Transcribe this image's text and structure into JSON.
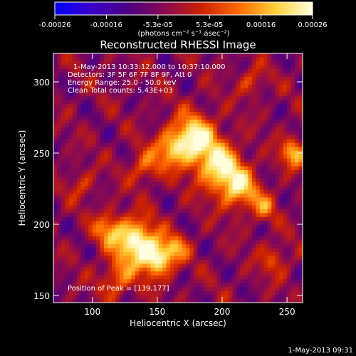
{
  "colorbar": {
    "tick_labels": [
      "-0.00026",
      "-0.00016",
      "-5.3e-05",
      "5.3e-05",
      "0.00016",
      "0.00026"
    ],
    "units_label": "(photons cm⁻² s⁻¹ asec⁻²)",
    "range": [
      -0.00026,
      0.00026
    ],
    "stops": [
      "#0000ff",
      "#3a00c8",
      "#4b0082",
      "#8b0a50",
      "#cc2200",
      "#ff6a00",
      "#ffd23a",
      "#ffffe0"
    ]
  },
  "chart_data": {
    "type": "heatmap",
    "title": "Reconstructed RHESSI Image",
    "xlabel": "Heliocentric X (arcsec)",
    "ylabel": "Heliocentric Y (arcsec)",
    "xlim": [
      70,
      262
    ],
    "ylim": [
      145,
      320
    ],
    "xticks": [
      100,
      150,
      200,
      250
    ],
    "yticks": [
      150,
      200,
      250,
      300
    ],
    "annotations": [
      "1-May-2013 10:33:12.000 to 10:37:10.000",
      "Detectors: 3F 5F 6F 7F 8F 9F, Att 0",
      "Energy Range: 25.0 - 50.0 keV",
      "Clean     Total counts: 5.43E+03"
    ],
    "peak_label": "Position of Peak = [139,177]",
    "peak": [
      139,
      177
    ],
    "sources": [
      {
        "x": 133,
        "y": 188,
        "sigma": 11,
        "amp": 1.0
      },
      {
        "x": 150,
        "y": 176,
        "sigma": 9,
        "amp": 0.9
      },
      {
        "x": 112,
        "y": 196,
        "sigma": 8,
        "amp": 0.55
      },
      {
        "x": 165,
        "y": 183,
        "sigma": 7,
        "amp": 0.45
      },
      {
        "x": 178,
        "y": 260,
        "sigma": 12,
        "amp": 0.95
      },
      {
        "x": 198,
        "y": 240,
        "sigma": 12,
        "amp": 0.85
      },
      {
        "x": 213,
        "y": 225,
        "sigma": 10,
        "amp": 0.7
      },
      {
        "x": 160,
        "y": 252,
        "sigma": 9,
        "amp": 0.55
      },
      {
        "x": 140,
        "y": 240,
        "sigma": 8,
        "amp": 0.45
      },
      {
        "x": 255,
        "y": 250,
        "sigma": 7,
        "amp": 0.7
      },
      {
        "x": 232,
        "y": 212,
        "sigma": 7,
        "amp": 0.45
      },
      {
        "x": 120,
        "y": 162,
        "sigma": 9,
        "amp": 0.5
      },
      {
        "x": 240,
        "y": 175,
        "sigma": 8,
        "amp": 0.35
      },
      {
        "x": 222,
        "y": 300,
        "sigma": 7,
        "amp": 0.35
      },
      {
        "x": 92,
        "y": 228,
        "sigma": 7,
        "amp": 0.3
      }
    ]
  },
  "footer": {
    "timestamp": "1-May-2013 09:31"
  }
}
